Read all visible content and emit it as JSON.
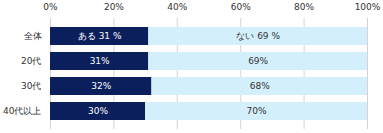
{
  "chart_data": {
    "type": "bar",
    "orientation": "horizontal",
    "stacked": true,
    "data_labels": true,
    "grid": true,
    "categories": [
      "全体",
      "20代",
      "30代",
      "40代以上"
    ],
    "series": [
      {
        "name": "ある",
        "color": "#0b1f5c",
        "values": [
          31,
          31,
          32,
          30
        ],
        "value_labels": [
          "ある 31 %",
          "31%",
          "32%",
          "30%"
        ]
      },
      {
        "name": "ない",
        "color": "#d3effb",
        "values": [
          69,
          69,
          68,
          70
        ],
        "value_labels": [
          "ない 69 %",
          "69%",
          "68%",
          "70%"
        ]
      }
    ],
    "xlim": [
      0,
      100
    ],
    "xticks": [
      {
        "value": 0,
        "label": "0%"
      },
      {
        "value": 20,
        "label": "20%"
      },
      {
        "value": 40,
        "label": "40%"
      },
      {
        "value": 60,
        "label": "60%"
      },
      {
        "value": 80,
        "label": "80%"
      },
      {
        "value": 100,
        "label": "100%"
      }
    ]
  }
}
